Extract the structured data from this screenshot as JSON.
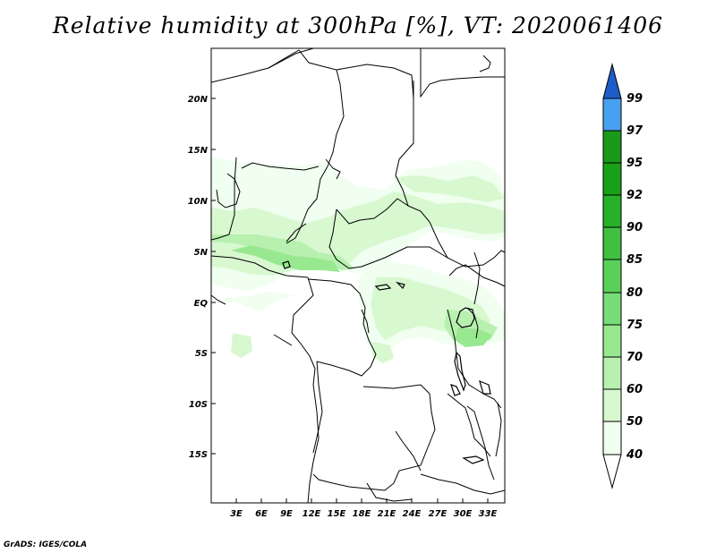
{
  "title": "Relative humidity at 300hPa [%], VT: 2020061406",
  "credit": "GrADS: IGES/COLA",
  "map": {
    "lat_labels": [
      "20N",
      "15N",
      "10N",
      "5N",
      "EQ",
      "5S",
      "10S",
      "15S"
    ],
    "lon_labels": [
      "3E",
      "6E",
      "9E",
      "12E",
      "15E",
      "18E",
      "21E",
      "24E",
      "27E",
      "30E",
      "33E"
    ]
  },
  "colorbar": {
    "levels": [
      "40",
      "50",
      "60",
      "70",
      "75",
      "80",
      "85",
      "90",
      "92",
      "95",
      "97",
      "99"
    ],
    "colors": [
      "#f0fff0",
      "#d8f8d0",
      "#b8f0b0",
      "#98e890",
      "#78dc78",
      "#5ad05a",
      "#40c040",
      "#28b028",
      "#18a018",
      "#1a9a1a",
      "#4aa0f0",
      "#2a7ae0",
      "#1e5cc8"
    ]
  }
}
